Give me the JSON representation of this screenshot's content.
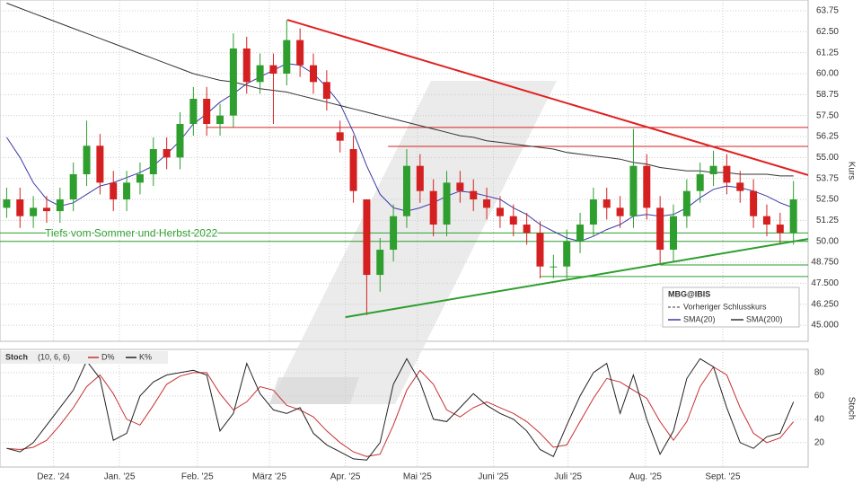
{
  "chart_data": [
    {
      "type": "candlestick",
      "legend_title": "MBG@IBIS",
      "reference_line_label": "Vorheriger Schlusskurs",
      "ylabel": "Kurs",
      "up_color": "#2e9e2e",
      "down_color": "#d42020",
      "xlim": [
        -0.5,
        60.1
      ],
      "ylim": [
        44.04,
        64.39
      ],
      "yticks": [
        63.75,
        {
          "value": 62.5,
          "label": "62.50"
        },
        61.25,
        {
          "value": 60,
          "label": "60.00"
        },
        58.75,
        {
          "value": 57.5,
          "label": "57.50"
        },
        56.25,
        {
          "value": 55,
          "label": "55.00"
        },
        53.75,
        {
          "value": 52.5,
          "label": "52.50"
        },
        51.25,
        {
          "value": 50,
          "label": "50.00"
        },
        {
          "value": 48.75,
          "label": "48.750"
        },
        {
          "value": 47.5,
          "label": "47.500"
        },
        {
          "value": 46.25,
          "label": "46.250"
        },
        {
          "value": 45,
          "label": "45.000"
        }
      ],
      "grid": true,
      "open": [
        52.0,
        52.5,
        51.5,
        52.0,
        51.8,
        52.5,
        54.0,
        55.7,
        53.5,
        52.5,
        53.5,
        54.0,
        55.5,
        55.0,
        57.0,
        58.5,
        57.0,
        57.5,
        61.5,
        59.5,
        60.5,
        60.0,
        62.0,
        60.5,
        59.5,
        56.5,
        55.5,
        52.5,
        48.0,
        49.5,
        51.5,
        54.5,
        53.0,
        51.0,
        53.5,
        53.0,
        52.5,
        52.0,
        51.5,
        51.0,
        50.5,
        48.5,
        48.5,
        50.0,
        51.0,
        52.5,
        52.0,
        51.5,
        54.5,
        52.0,
        49.5,
        51.5,
        53.0,
        54.0,
        54.5,
        53.5,
        53.0,
        51.5,
        51.0,
        50.5
      ],
      "high": [
        53.2,
        53.2,
        52.7,
        52.7,
        53.2,
        54.7,
        57.2,
        56.4,
        54.2,
        54.2,
        54.7,
        56.2,
        56.2,
        57.7,
        59.2,
        59.2,
        58.2,
        62.4,
        62.2,
        61.2,
        61.2,
        63.2,
        62.7,
        61.2,
        60.2,
        57.2,
        56.3,
        52.5,
        50.2,
        52.2,
        55.5,
        55.2,
        53.7,
        54.2,
        54.2,
        53.7,
        53.2,
        52.7,
        52.2,
        51.7,
        51.2,
        49.2,
        50.7,
        51.7,
        53.2,
        53.2,
        52.7,
        56.7,
        55.2,
        52.7,
        52.2,
        53.7,
        54.7,
        55.4,
        55.2,
        54.2,
        53.7,
        52.2,
        51.7,
        53.6
      ],
      "low": [
        51.4,
        50.8,
        50.8,
        51.1,
        51.1,
        51.8,
        53.3,
        52.8,
        51.8,
        51.8,
        52.8,
        53.3,
        54.3,
        54.3,
        56.3,
        56.3,
        56.3,
        56.8,
        58.8,
        58.8,
        57.0,
        59.3,
        59.8,
        58.8,
        57.8,
        55.3,
        52.3,
        45.6,
        47.0,
        48.8,
        50.8,
        52.3,
        50.3,
        50.3,
        52.3,
        51.8,
        51.3,
        50.8,
        50.3,
        49.8,
        47.8,
        47.8,
        47.8,
        49.3,
        50.3,
        51.3,
        50.8,
        50.8,
        51.3,
        48.7,
        48.8,
        50.8,
        52.3,
        53.3,
        52.8,
        52.3,
        50.8,
        50.3,
        49.8,
        49.8
      ],
      "close": [
        52.5,
        51.5,
        52.0,
        51.8,
        52.5,
        54.0,
        55.7,
        53.5,
        52.5,
        53.5,
        54.0,
        55.5,
        55.0,
        57.0,
        58.5,
        57.0,
        57.5,
        61.5,
        59.5,
        60.5,
        60.0,
        62.0,
        60.5,
        59.5,
        58.5,
        56.0,
        53.0,
        48.0,
        49.5,
        51.5,
        54.5,
        53.0,
        51.0,
        53.5,
        53.0,
        52.5,
        52.0,
        51.5,
        51.0,
        50.5,
        48.5,
        48.5,
        50.0,
        51.0,
        52.5,
        52.0,
        51.5,
        54.5,
        52.0,
        49.5,
        51.5,
        53.0,
        54.0,
        54.5,
        53.5,
        53.0,
        51.5,
        51.0,
        50.5,
        52.5
      ],
      "series": [
        {
          "name": "SMA(20)",
          "color": "#3a3aa8",
          "values": [
            56.2,
            55.0,
            53.5,
            52.5,
            52.1,
            52.3,
            52.8,
            53.3,
            53.5,
            53.8,
            54.1,
            54.5,
            55.2,
            56.0,
            57.0,
            57.6,
            58.3,
            58.8,
            59.4,
            59.8,
            60.2,
            60.6,
            60.5,
            60.0,
            59.2,
            58.2,
            56.5,
            54.5,
            52.8,
            52.0,
            51.8,
            52.0,
            52.3,
            52.7,
            53.0,
            52.9,
            52.7,
            52.5,
            52.0,
            51.6,
            51.0,
            50.6,
            50.2,
            50.0,
            50.3,
            50.7,
            51.0,
            51.5,
            51.6,
            51.5,
            51.6,
            52.0,
            52.6,
            53.1,
            53.3,
            53.2,
            53.0,
            52.7,
            52.3,
            52.0
          ]
        },
        {
          "name": "SMA(200)",
          "color": "#333333",
          "values": [
            64.2,
            63.9,
            63.6,
            63.3,
            63.0,
            62.7,
            62.4,
            62.1,
            61.8,
            61.5,
            61.2,
            60.9,
            60.6,
            60.3,
            60.0,
            59.8,
            59.6,
            59.5,
            59.3,
            59.1,
            59.0,
            58.9,
            58.7,
            58.5,
            58.3,
            58.1,
            57.9,
            57.7,
            57.5,
            57.3,
            57.1,
            56.9,
            56.7,
            56.5,
            56.3,
            56.2,
            56.0,
            55.9,
            55.8,
            55.7,
            55.6,
            55.5,
            55.3,
            55.2,
            55.1,
            55.0,
            54.9,
            54.7,
            54.6,
            54.4,
            54.3,
            54.2,
            54.2,
            54.1,
            54.1,
            54.0,
            54.0,
            54.0,
            53.9,
            53.9
          ]
        }
      ],
      "levels": [
        {
          "value": 56.79,
          "from": 15.0,
          "color": "#d42020"
        },
        {
          "value": 55.66,
          "from": 28.6,
          "color": "#d42020"
        },
        {
          "value": 50.5,
          "from": -0.5,
          "color": "#2e9e2e"
        },
        {
          "value": 50.0,
          "from": -0.5,
          "color": "#2e9e2e"
        },
        {
          "value": 48.59,
          "from": 49.0,
          "color": "#2e9e2e"
        },
        {
          "value": 47.9,
          "from": 40.0,
          "color": "#2e9e2e"
        }
      ],
      "trendlines": [
        {
          "x": [
            21.05,
            60.1
          ],
          "y": [
            63.21,
            53.95
          ],
          "color": "#e02020"
        },
        {
          "x": [
            25.4,
            60.1
          ],
          "y": [
            45.48,
            50.14
          ],
          "color": "#2e9e2e"
        }
      ],
      "annotation": "Tiefs vom Sommer und Herbst 2022"
    },
    {
      "type": "line",
      "title": "Stoch",
      "params": "(10, 6, 6)",
      "ylabel": "Stoch",
      "xlim": [
        -0.5,
        60.1
      ],
      "ylim": [
        -1,
        100
      ],
      "yticks": [
        20,
        40,
        60,
        80
      ],
      "grid": true,
      "xticks": [
        {
          "value": 3.5,
          "label": "Dez. '24"
        },
        {
          "value": 8.46,
          "label": "Jan. '25"
        },
        {
          "value": 14.3,
          "label": "Feb. '25"
        },
        {
          "value": 19.7,
          "label": "März '25"
        },
        {
          "value": 25.4,
          "label": "Apr. '25"
        },
        {
          "value": 30.8,
          "label": "Mai '25"
        },
        {
          "value": 36.5,
          "label": "Juni '25"
        },
        {
          "value": 42.1,
          "label": "Juli '25"
        },
        {
          "value": 47.9,
          "label": "Aug. '25"
        },
        {
          "value": 53.7,
          "label": "Sept. '25"
        }
      ],
      "series": [
        {
          "name": "D%",
          "color": "#c83030",
          "values": [
            15,
            14,
            16,
            22,
            35,
            50,
            68,
            78,
            62,
            40,
            35,
            52,
            70,
            77,
            80,
            80,
            62,
            48,
            55,
            68,
            65,
            52,
            48,
            42,
            30,
            20,
            12,
            8,
            10,
            35,
            65,
            82,
            70,
            48,
            42,
            50,
            55,
            50,
            45,
            38,
            28,
            16,
            18,
            38,
            58,
            75,
            72,
            65,
            58,
            38,
            22,
            38,
            68,
            85,
            78,
            50,
            28,
            20,
            24,
            38
          ]
        },
        {
          "name": "K%",
          "color": "#222222",
          "values": [
            15,
            12,
            20,
            35,
            50,
            65,
            90,
            75,
            22,
            28,
            60,
            72,
            78,
            80,
            82,
            78,
            30,
            45,
            88,
            62,
            48,
            45,
            50,
            28,
            18,
            12,
            6,
            5,
            20,
            70,
            92,
            72,
            40,
            38,
            50,
            62,
            52,
            45,
            40,
            30,
            14,
            8,
            35,
            60,
            80,
            88,
            45,
            78,
            40,
            10,
            30,
            75,
            92,
            85,
            50,
            20,
            15,
            25,
            28,
            55
          ]
        }
      ]
    }
  ]
}
